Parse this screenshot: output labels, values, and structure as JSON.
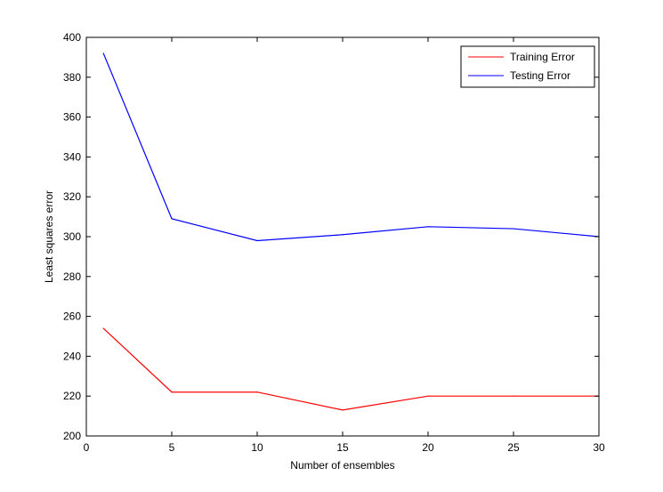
{
  "chart_data": {
    "type": "line",
    "title": "",
    "xlabel": "Number of ensembles",
    "ylabel": "Least squares error",
    "xlim": [
      0,
      30
    ],
    "ylim": [
      200,
      400
    ],
    "xticks": [
      0,
      5,
      10,
      15,
      20,
      25,
      30
    ],
    "yticks": [
      200,
      220,
      240,
      260,
      280,
      300,
      320,
      340,
      360,
      380,
      400
    ],
    "grid": false,
    "legend_position": "top-right",
    "series": [
      {
        "name": "Training Error",
        "color": "#ff0000",
        "x": [
          1,
          5,
          10,
          15,
          20,
          25,
          30
        ],
        "y": [
          254,
          222,
          222,
          213,
          220,
          220,
          220
        ]
      },
      {
        "name": "Testing Error",
        "color": "#0000ff",
        "x": [
          1,
          5,
          10,
          15,
          20,
          25,
          30
        ],
        "y": [
          392,
          309,
          298,
          301,
          305,
          304,
          300
        ]
      }
    ]
  }
}
